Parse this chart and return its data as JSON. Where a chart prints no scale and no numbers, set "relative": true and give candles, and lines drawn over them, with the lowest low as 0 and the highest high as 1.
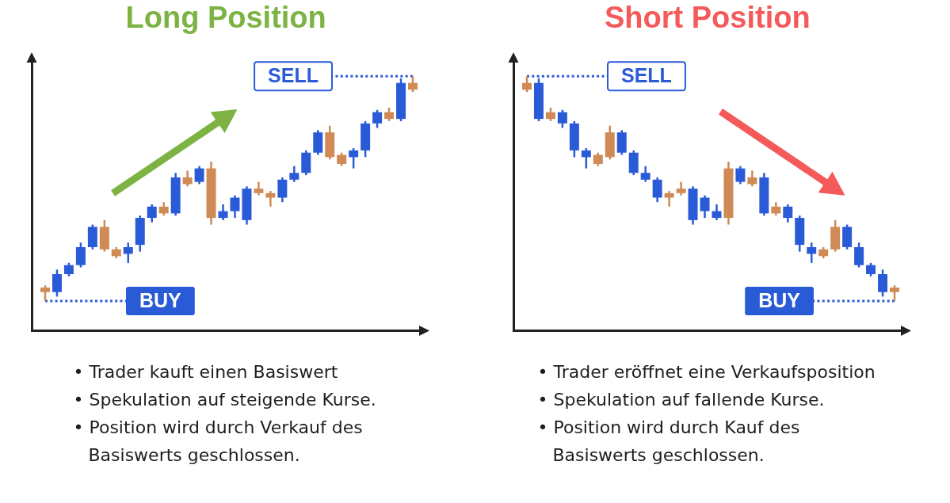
{
  "chart_data": [
    {
      "type": "candlestick",
      "title": "Long Position",
      "relative": true,
      "categories": [
        null,
        null,
        null,
        null,
        null,
        null,
        null,
        null,
        null,
        null,
        null,
        null,
        null,
        null,
        null,
        null,
        null,
        null,
        null,
        null,
        null,
        null,
        null,
        null,
        null,
        null,
        null,
        null,
        null,
        null,
        null,
        null
      ],
      "ohlc": [
        [
          0.06,
          0.07,
          0,
          0.04
        ],
        [
          0.04,
          0.14,
          0.02,
          0.12
        ],
        [
          0.12,
          0.17,
          0.11,
          0.16
        ],
        [
          0.16,
          0.26,
          0.15,
          0.24
        ],
        [
          0.24,
          0.34,
          0.23,
          0.33
        ],
        [
          0.33,
          0.36,
          0.22,
          0.23
        ],
        [
          0.23,
          0.24,
          0.19,
          0.2
        ],
        [
          0.21,
          0.26,
          0.17,
          0.24
        ],
        [
          0.25,
          0.38,
          0.22,
          0.37
        ],
        [
          0.37,
          0.43,
          0.35,
          0.42
        ],
        [
          0.42,
          0.44,
          0.38,
          0.39
        ],
        [
          0.39,
          0.57,
          0.38,
          0.55
        ],
        [
          0.55,
          0.58,
          0.51,
          0.52
        ],
        [
          0.53,
          0.6,
          0.52,
          0.59
        ],
        [
          0.59,
          0.62,
          0.34,
          0.37
        ],
        [
          0.37,
          0.43,
          0.36,
          0.4
        ],
        [
          0.4,
          0.47,
          0.37,
          0.46
        ],
        [
          0.36,
          0.51,
          0.34,
          0.5
        ],
        [
          0.5,
          0.53,
          0.47,
          0.48
        ],
        [
          0.48,
          0.49,
          0.42,
          0.46
        ],
        [
          0.46,
          0.55,
          0.44,
          0.54
        ],
        [
          0.54,
          0.6,
          0.53,
          0.57
        ],
        [
          0.57,
          0.67,
          0.56,
          0.66
        ],
        [
          0.66,
          0.76,
          0.65,
          0.75
        ],
        [
          0.75,
          0.78,
          0.63,
          0.64
        ],
        [
          0.65,
          0.66,
          0.6,
          0.61
        ],
        [
          0.64,
          0.68,
          0.59,
          0.67
        ],
        [
          0.67,
          0.8,
          0.64,
          0.79
        ],
        [
          0.79,
          0.85,
          0.77,
          0.84
        ],
        [
          0.84,
          0.86,
          0.8,
          0.81
        ],
        [
          0.81,
          0.99,
          0.8,
          0.97
        ],
        [
          0.97,
          1,
          0.93,
          0.94
        ]
      ],
      "colors": [
        "#cf8a55",
        "#2a5bd7",
        "#2a5bd7",
        "#2a5bd7",
        "#2a5bd7",
        "#cf8a55",
        "#cf8a55",
        "#2a5bd7",
        "#2a5bd7",
        "#2a5bd7",
        "#cf8a55",
        "#2a5bd7",
        "#cf8a55",
        "#2a5bd7",
        "#cf8a55",
        "#2a5bd7",
        "#2a5bd7",
        "#2a5bd7",
        "#cf8a55",
        "#cf8a55",
        "#2a5bd7",
        "#2a5bd7",
        "#2a5bd7",
        "#2a5bd7",
        "#cf8a55",
        "#cf8a55",
        "#2a5bd7",
        "#2a5bd7",
        "#2a5bd7",
        "#cf8a55",
        "#2a5bd7",
        "#cf8a55"
      ],
      "ref_lines": [
        {
          "axis": "y",
          "value": 1,
          "label": "SELL",
          "color": "#2a5bd7",
          "line_style": "dotted"
        },
        {
          "axis": "y",
          "value": 0,
          "label": "BUY",
          "color": "#2a5bd7",
          "line_style": "dotted"
        }
      ],
      "annotations": [
        "• Trader kauft einen Basiswert",
        "• Spekulation auf steigende Kurse.",
        "• Position wird durch Verkauf des Basiswerts geschlossen."
      ]
    },
    {
      "type": "candlestick",
      "title": "Short Position",
      "relative": true,
      "categories": [
        null,
        null,
        null,
        null,
        null,
        null,
        null,
        null,
        null,
        null,
        null,
        null,
        null,
        null,
        null,
        null,
        null,
        null,
        null,
        null,
        null,
        null,
        null,
        null,
        null,
        null,
        null,
        null,
        null,
        null,
        null,
        null
      ],
      "ohlc": [
        [
          0.94,
          1,
          0.93,
          0.97
        ],
        [
          0.97,
          0.99,
          0.8,
          0.81
        ],
        [
          0.81,
          0.86,
          0.8,
          0.84
        ],
        [
          0.84,
          0.85,
          0.77,
          0.79
        ],
        [
          0.79,
          0.8,
          0.64,
          0.67
        ],
        [
          0.67,
          0.68,
          0.59,
          0.64
        ],
        [
          0.61,
          0.66,
          0.6,
          0.65
        ],
        [
          0.64,
          0.78,
          0.63,
          0.75
        ],
        [
          0.75,
          0.76,
          0.65,
          0.66
        ],
        [
          0.66,
          0.67,
          0.56,
          0.57
        ],
        [
          0.57,
          0.6,
          0.53,
          0.54
        ],
        [
          0.54,
          0.55,
          0.44,
          0.46
        ],
        [
          0.46,
          0.49,
          0.42,
          0.48
        ],
        [
          0.48,
          0.53,
          0.47,
          0.5
        ],
        [
          0.5,
          0.51,
          0.34,
          0.36
        ],
        [
          0.46,
          0.47,
          0.37,
          0.4
        ],
        [
          0.4,
          0.43,
          0.36,
          0.37
        ],
        [
          0.37,
          0.62,
          0.34,
          0.59
        ],
        [
          0.59,
          0.6,
          0.52,
          0.53
        ],
        [
          0.52,
          0.58,
          0.51,
          0.55
        ],
        [
          0.55,
          0.57,
          0.38,
          0.39
        ],
        [
          0.39,
          0.44,
          0.38,
          0.42
        ],
        [
          0.42,
          0.43,
          0.35,
          0.37
        ],
        [
          0.37,
          0.38,
          0.22,
          0.25
        ],
        [
          0.24,
          0.26,
          0.17,
          0.21
        ],
        [
          0.2,
          0.24,
          0.19,
          0.23
        ],
        [
          0.23,
          0.36,
          0.22,
          0.33
        ],
        [
          0.33,
          0.34,
          0.23,
          0.24
        ],
        [
          0.24,
          0.26,
          0.15,
          0.16
        ],
        [
          0.16,
          0.17,
          0.11,
          0.12
        ],
        [
          0.12,
          0.14,
          0.02,
          0.04
        ],
        [
          0.04,
          0.07,
          0,
          0.06
        ]
      ],
      "colors": [
        "#cf8a55",
        "#2a5bd7",
        "#cf8a55",
        "#2a5bd7",
        "#2a5bd7",
        "#2a5bd7",
        "#cf8a55",
        "#cf8a55",
        "#2a5bd7",
        "#2a5bd7",
        "#2a5bd7",
        "#2a5bd7",
        "#cf8a55",
        "#cf8a55",
        "#2a5bd7",
        "#2a5bd7",
        "#2a5bd7",
        "#cf8a55",
        "#2a5bd7",
        "#cf8a55",
        "#2a5bd7",
        "#cf8a55",
        "#2a5bd7",
        "#2a5bd7",
        "#2a5bd7",
        "#cf8a55",
        "#cf8a55",
        "#2a5bd7",
        "#2a5bd7",
        "#2a5bd7",
        "#2a5bd7",
        "#cf8a55"
      ],
      "ref_lines": [
        {
          "axis": "y",
          "value": 1,
          "label": "SELL",
          "color": "#2a5bd7",
          "line_style": "dotted"
        },
        {
          "axis": "y",
          "value": 0,
          "label": "BUY",
          "color": "#2a5bd7",
          "line_style": "dotted"
        }
      ],
      "annotations": [
        "• Trader eröffnet eine Verkaufsposition",
        "• Spekulation auf fallende Kurse.",
        "• Position wird durch Kauf des Basiswerts geschlossen."
      ]
    }
  ]
}
